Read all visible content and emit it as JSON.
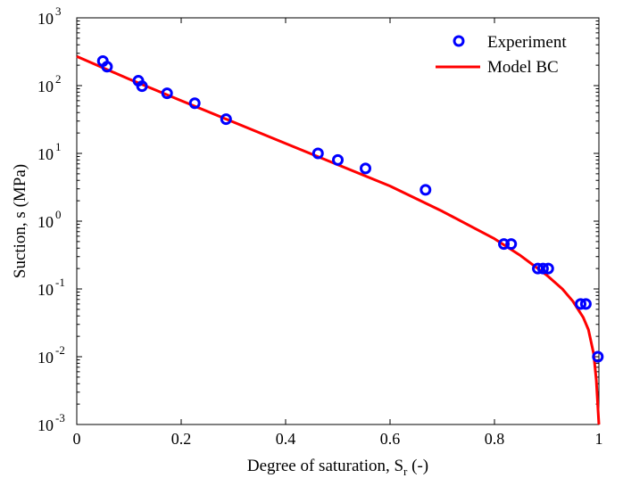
{
  "chart_data": {
    "type": "scatter",
    "title": "",
    "xlabel": "Degree of saturation, S",
    "xlabel_sub": "r",
    "xlabel_tail": " (-)",
    "ylabel": "Suction, s (MPa)",
    "xlim": [
      0,
      1
    ],
    "ylim": [
      0.001,
      1000
    ],
    "yscale": "log",
    "grid": false,
    "legend_position": "top-right",
    "x_ticks": [
      {
        "value": 0,
        "label": "0"
      },
      {
        "value": 0.2,
        "label": "0.2"
      },
      {
        "value": 0.4,
        "label": "0.4"
      },
      {
        "value": 0.6,
        "label": "0.6"
      },
      {
        "value": 0.8,
        "label": "0.8"
      },
      {
        "value": 1,
        "label": "1"
      }
    ],
    "y_ticks": [
      {
        "value": 0.001,
        "base": "10",
        "exp": "-3"
      },
      {
        "value": 0.01,
        "base": "10",
        "exp": "-2"
      },
      {
        "value": 0.1,
        "base": "10",
        "exp": "-1"
      },
      {
        "value": 1,
        "base": "10",
        "exp": "0"
      },
      {
        "value": 10,
        "base": "10",
        "exp": "1"
      },
      {
        "value": 100,
        "base": "10",
        "exp": "2"
      },
      {
        "value": 1000,
        "base": "10",
        "exp": "3"
      }
    ],
    "series": [
      {
        "name": "Experiment",
        "kind": "markers",
        "color": "#0000ff",
        "points": [
          {
            "x": 0.05,
            "y": 230
          },
          {
            "x": 0.058,
            "y": 190
          },
          {
            "x": 0.118,
            "y": 118
          },
          {
            "x": 0.125,
            "y": 98
          },
          {
            "x": 0.173,
            "y": 77
          },
          {
            "x": 0.226,
            "y": 55
          },
          {
            "x": 0.286,
            "y": 32
          },
          {
            "x": 0.462,
            "y": 10
          },
          {
            "x": 0.5,
            "y": 8
          },
          {
            "x": 0.553,
            "y": 6
          },
          {
            "x": 0.668,
            "y": 2.9
          },
          {
            "x": 0.818,
            "y": 0.46
          },
          {
            "x": 0.832,
            "y": 0.46
          },
          {
            "x": 0.883,
            "y": 0.2
          },
          {
            "x": 0.893,
            "y": 0.2
          },
          {
            "x": 0.903,
            "y": 0.2
          },
          {
            "x": 0.965,
            "y": 0.06
          },
          {
            "x": 0.975,
            "y": 0.06
          },
          {
            "x": 0.998,
            "y": 0.01
          }
        ]
      },
      {
        "name": "Model BC",
        "kind": "line",
        "color": "#ff0000",
        "points": [
          {
            "x": 0.0,
            "y": 270
          },
          {
            "x": 0.1,
            "y": 125
          },
          {
            "x": 0.2,
            "y": 60
          },
          {
            "x": 0.3,
            "y": 29
          },
          {
            "x": 0.4,
            "y": 14
          },
          {
            "x": 0.5,
            "y": 6.8
          },
          {
            "x": 0.6,
            "y": 3.3
          },
          {
            "x": 0.7,
            "y": 1.4
          },
          {
            "x": 0.8,
            "y": 0.55
          },
          {
            "x": 0.85,
            "y": 0.31
          },
          {
            "x": 0.9,
            "y": 0.16
          },
          {
            "x": 0.93,
            "y": 0.1
          },
          {
            "x": 0.95,
            "y": 0.066
          },
          {
            "x": 0.97,
            "y": 0.038
          },
          {
            "x": 0.98,
            "y": 0.025
          },
          {
            "x": 0.99,
            "y": 0.011
          },
          {
            "x": 0.995,
            "y": 0.0045
          },
          {
            "x": 1.0,
            "y": 0.001
          }
        ]
      }
    ]
  }
}
